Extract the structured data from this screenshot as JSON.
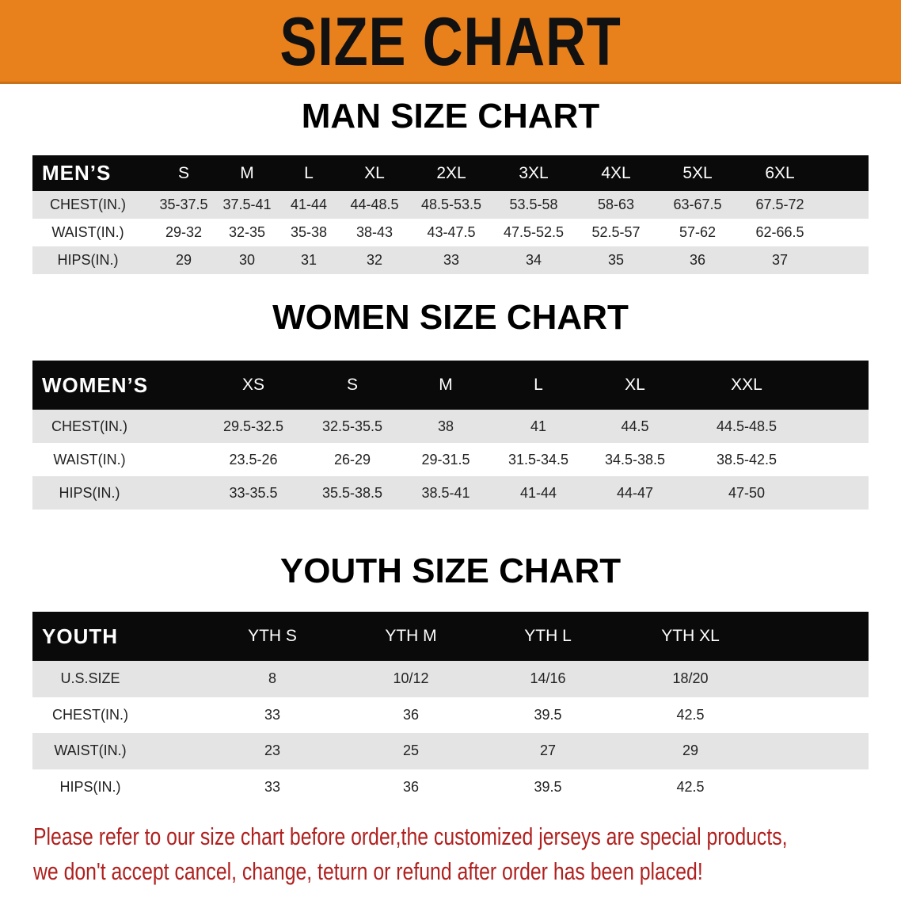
{
  "banner": {
    "title": "SIZE CHART",
    "color": "#e8801c"
  },
  "men": {
    "title": "MAN SIZE CHART",
    "header": [
      "MEN’S",
      "S",
      "M",
      "L",
      "XL",
      "2XL",
      "3XL",
      "4XL",
      "5XL",
      "6XL"
    ],
    "rows": [
      [
        "CHEST(IN.)",
        "35-37.5",
        "37.5-41",
        "41-44",
        "44-48.5",
        "48.5-53.5",
        "53.5-58",
        "58-63",
        "63-67.5",
        "67.5-72"
      ],
      [
        "WAIST(IN.)",
        "29-32",
        "32-35",
        "35-38",
        "38-43",
        "43-47.5",
        "47.5-52.5",
        "52.5-57",
        "57-62",
        "62-66.5"
      ],
      [
        "HIPS(IN.)",
        "29",
        "30",
        "31",
        "32",
        "33",
        "34",
        "35",
        "36",
        "37"
      ]
    ]
  },
  "women": {
    "title": "WOMEN SIZE CHART",
    "header": [
      "WOMEN’S",
      "XS",
      "S",
      "M",
      "L",
      "XL",
      "XXL"
    ],
    "rows": [
      [
        "CHEST(IN.)",
        "29.5-32.5",
        "32.5-35.5",
        "38",
        "41",
        "44.5",
        "44.5-48.5"
      ],
      [
        "WAIST(IN.)",
        "23.5-26",
        "26-29",
        "29-31.5",
        "31.5-34.5",
        "34.5-38.5",
        "38.5-42.5"
      ],
      [
        "HIPS(IN.)",
        "33-35.5",
        "35.5-38.5",
        "38.5-41",
        "41-44",
        "44-47",
        "47-50"
      ]
    ]
  },
  "youth": {
    "title": "YOUTH SIZE CHART",
    "header": [
      "YOUTH",
      "YTH S",
      "YTH M",
      "YTH L",
      "YTH XL"
    ],
    "rows": [
      [
        "U.S.SIZE",
        "8",
        "10/12",
        "14/16",
        "18/20"
      ],
      [
        "CHEST(IN.)",
        "33",
        "36",
        "39.5",
        "42.5"
      ],
      [
        "WAIST(IN.)",
        "23",
        "25",
        "27",
        "29"
      ],
      [
        "HIPS(IN.)",
        "33",
        "36",
        "39.5",
        "42.5"
      ]
    ]
  },
  "footer": {
    "line1": "Please refer to our size chart before order,the customized jerseys are special products,",
    "line2": "we don't accept cancel, change, teturn or refund after order has been placed!",
    "color": "#b0201e"
  }
}
